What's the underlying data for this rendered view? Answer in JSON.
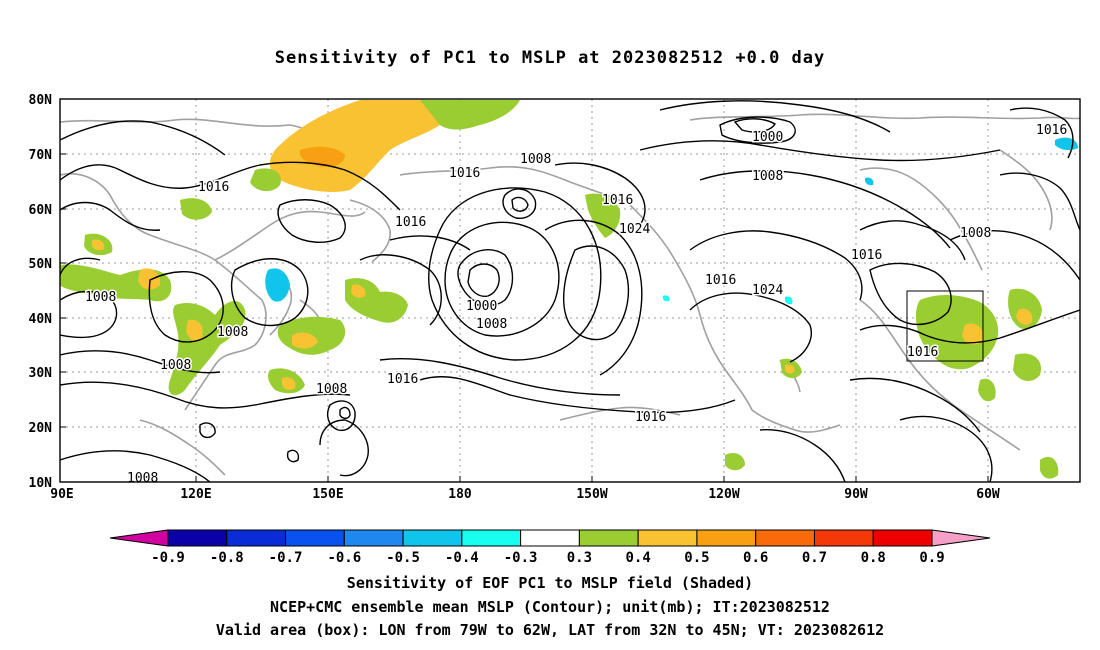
{
  "title": "Sensitivity of PC1 to MSLP at 2023082512 +0.0 day",
  "axes": {
    "lat_labels": [
      "80N",
      "70N",
      "60N",
      "50N",
      "40N",
      "30N",
      "20N",
      "10N"
    ],
    "lon_labels": [
      "90E",
      "120E",
      "150E",
      "180",
      "150W",
      "120W",
      "90W",
      "60W"
    ]
  },
  "colorbar": {
    "labels": [
      "-0.9",
      "-0.8",
      "-0.7",
      "-0.6",
      "-0.5",
      "-0.4",
      "-0.3",
      "0.3",
      "0.4",
      "0.5",
      "0.6",
      "0.7",
      "0.8",
      "0.9"
    ],
    "colors": [
      "#d300a0",
      "#0a00a8",
      "#0a2cd6",
      "#0a52f0",
      "#1e88ee",
      "#10c4ea",
      "#18fff0",
      "#ffffff",
      "#9acd32",
      "#f8c232",
      "#f8a012",
      "#f86a0a",
      "#f43808",
      "#ee0000",
      "#f6a0c8"
    ]
  },
  "contour_labels": [
    {
      "text": "1016",
      "pos": "ne-arctic"
    },
    {
      "text": "1016",
      "pos": "nw-siberia"
    },
    {
      "text": "1016",
      "pos": "okhotsk"
    },
    {
      "text": "1016",
      "pos": "bering"
    },
    {
      "text": "1008",
      "pos": "aleutian-north"
    },
    {
      "text": "1016",
      "pos": "alaska"
    },
    {
      "text": "1024",
      "pos": "gulf-alaska"
    },
    {
      "text": "1000",
      "pos": "arctic-low"
    },
    {
      "text": "1008",
      "pos": "canada-north"
    },
    {
      "text": "1016",
      "pos": "canada-east"
    },
    {
      "text": "1008",
      "pos": "labrador"
    },
    {
      "text": "1008",
      "pos": "china-north"
    },
    {
      "text": "1008",
      "pos": "korea"
    },
    {
      "text": "1008",
      "pos": "china-south"
    },
    {
      "text": "1000",
      "pos": "low-center"
    },
    {
      "text": "1008",
      "pos": "low-south"
    },
    {
      "text": "1016",
      "pos": "west-us"
    },
    {
      "text": "1024",
      "pos": "west-us-high"
    },
    {
      "text": "1016",
      "pos": "subtropical-pacific"
    },
    {
      "text": "1016",
      "pos": "central-pacific"
    },
    {
      "text": "1008",
      "pos": "west-pacific"
    },
    {
      "text": "1016",
      "pos": "box-area"
    },
    {
      "text": "1008",
      "pos": "south-china-sea"
    }
  ],
  "box_label": "1016",
  "captions": {
    "line1": "Sensitivity of EOF PC1 to MSLP field (Shaded)",
    "line2": "NCEP+CMC ensemble mean MSLP (Contour); unit(mb); IT:2023082512",
    "line3": "Valid area (box): LON from 79W to 62W, LAT from 32N to 45N; VT: 2023082612"
  }
}
